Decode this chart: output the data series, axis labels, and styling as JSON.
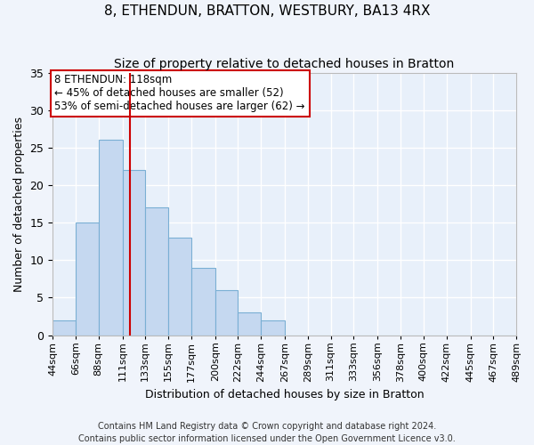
{
  "title": "8, ETHENDUN, BRATTON, WESTBURY, BA13 4RX",
  "subtitle": "Size of property relative to detached houses in Bratton",
  "xlabel": "Distribution of detached houses by size in Bratton",
  "ylabel": "Number of detached properties",
  "bar_color": "#c5d8f0",
  "bar_edge_color": "#7aafd4",
  "background_color": "#f0f4fb",
  "plot_bg_color": "#e8f0fa",
  "grid_color": "#ffffff",
  "annotation_text": "8 ETHENDUN: 118sqm\n← 45% of detached houses are smaller (52)\n53% of semi-detached houses are larger (62) →",
  "vline_x": 118,
  "vline_color": "#cc0000",
  "bin_edges": [
    44,
    66,
    88,
    111,
    133,
    155,
    177,
    200,
    222,
    244,
    267,
    289,
    311,
    333,
    356,
    378,
    400,
    422,
    445,
    467,
    489
  ],
  "bin_counts": [
    2,
    15,
    26,
    22,
    17,
    13,
    9,
    6,
    3,
    2,
    0,
    0,
    0,
    0,
    0,
    0,
    0,
    0,
    0,
    0
  ],
  "tick_labels": [
    "44sqm",
    "66sqm",
    "88sqm",
    "111sqm",
    "133sqm",
    "155sqm",
    "177sqm",
    "200sqm",
    "222sqm",
    "244sqm",
    "267sqm",
    "289sqm",
    "311sqm",
    "333sqm",
    "356sqm",
    "378sqm",
    "400sqm",
    "422sqm",
    "445sqm",
    "467sqm",
    "489sqm"
  ],
  "ylim": [
    0,
    35
  ],
  "yticks": [
    0,
    5,
    10,
    15,
    20,
    25,
    30,
    35
  ],
  "footer_text": "Contains HM Land Registry data © Crown copyright and database right 2024.\nContains public sector information licensed under the Open Government Licence v3.0.",
  "annotation_box_color": "#ffffff",
  "annotation_box_edge_color": "#cc0000",
  "figsize": [
    6.0,
    5.0
  ],
  "dpi": 100
}
